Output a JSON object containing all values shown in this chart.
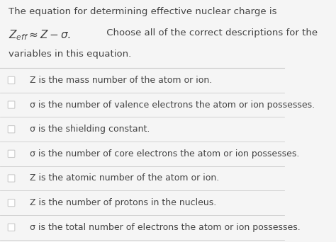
{
  "bg_color": "#f5f5f5",
  "text_color": "#444444",
  "title_line1": "The equation for determining effective nuclear charge is",
  "title_line3": "variables in this equation.",
  "options": [
    "Z is the mass number of the atom or ion.",
    "σ is the number of valence electrons the atom or ion possesses.",
    "σ is the shielding constant.",
    "σ is the number of core electrons the atom or ion possesses.",
    "Z is the atomic number of the atom or ion.",
    "Z is the number of protons in the nucleus.",
    "σ is the total number of electrons the atom or ion possesses."
  ],
  "checkbox_color": "#cccccc",
  "line_color": "#cccccc",
  "font_size_title": 9.5,
  "font_size_options": 9.0
}
